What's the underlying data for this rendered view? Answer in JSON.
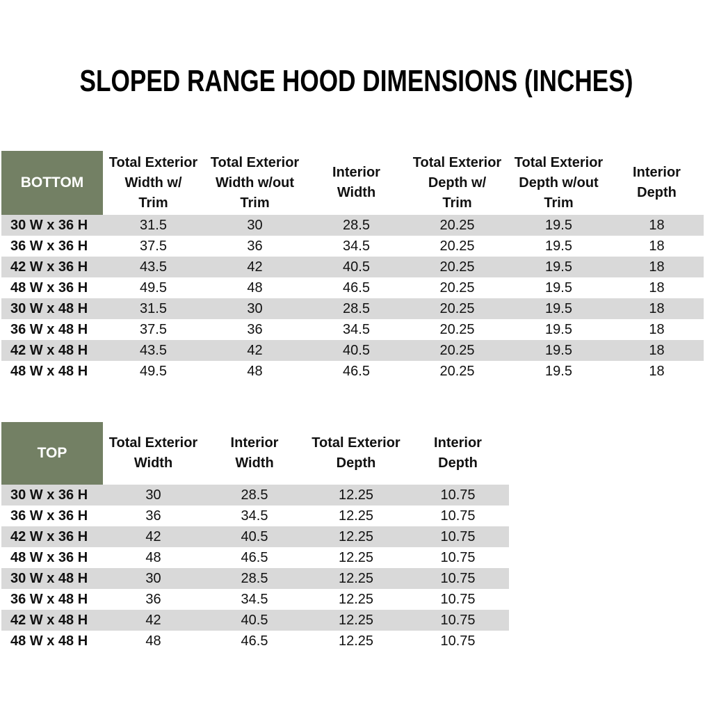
{
  "title": "SLOPED RANGE HOOD DIMENSIONS (INCHES)",
  "colors": {
    "header_green": "#738064",
    "row_stripe_gray": "#D9D9D9",
    "header_text": "#FFFFFF",
    "body_text": "#000000"
  },
  "bottom_table": {
    "label": "BOTTOM",
    "columns": [
      {
        "label": "Total Exterior Width w/ Trim",
        "lines": [
          "Total Exterior",
          "Width w/",
          "Trim"
        ]
      },
      {
        "label": "Total Exterior Width w/out Trim",
        "lines": [
          "Total Exterior",
          "Width w/out",
          "Trim"
        ]
      },
      {
        "label": "Interior Width",
        "lines": [
          "Interior",
          "Width"
        ]
      },
      {
        "label": "Total Exterior Depth w/ Trim",
        "lines": [
          "Total Exterior",
          "Depth w/",
          "Trim"
        ]
      },
      {
        "label": "Total Exterior Depth w/out Trim",
        "lines": [
          "Total Exterior",
          "Depth w/out",
          "Trim"
        ]
      },
      {
        "label": "Interior Depth",
        "lines": [
          "Interior",
          "Depth"
        ]
      }
    ],
    "rows": [
      {
        "label": "30 W x 36 H",
        "values": [
          "31.5",
          "30",
          "28.5",
          "20.25",
          "19.5",
          "18"
        ]
      },
      {
        "label": "36 W x 36 H",
        "values": [
          "37.5",
          "36",
          "34.5",
          "20.25",
          "19.5",
          "18"
        ]
      },
      {
        "label": "42 W x 36 H",
        "values": [
          "43.5",
          "42",
          "40.5",
          "20.25",
          "19.5",
          "18"
        ]
      },
      {
        "label": "48 W x 36 H",
        "values": [
          "49.5",
          "48",
          "46.5",
          "20.25",
          "19.5",
          "18"
        ]
      },
      {
        "label": "30 W x 48 H",
        "values": [
          "31.5",
          "30",
          "28.5",
          "20.25",
          "19.5",
          "18"
        ]
      },
      {
        "label": "36 W x 48 H",
        "values": [
          "37.5",
          "36",
          "34.5",
          "20.25",
          "19.5",
          "18"
        ]
      },
      {
        "label": "42 W x 48 H",
        "values": [
          "43.5",
          "42",
          "40.5",
          "20.25",
          "19.5",
          "18"
        ]
      },
      {
        "label": "48 W x 48 H",
        "values": [
          "49.5",
          "48",
          "46.5",
          "20.25",
          "19.5",
          "18"
        ]
      }
    ]
  },
  "top_table": {
    "label": "TOP",
    "columns": [
      {
        "label": "Total Exterior Width",
        "lines": [
          "Total Exterior",
          "Width"
        ]
      },
      {
        "label": "Interior Width",
        "lines": [
          "Interior",
          "Width"
        ]
      },
      {
        "label": "Total Exterior Depth",
        "lines": [
          "Total Exterior",
          "Depth"
        ]
      },
      {
        "label": "Interior Depth",
        "lines": [
          "Interior",
          "Depth"
        ]
      }
    ],
    "rows": [
      {
        "label": "30 W x 36 H",
        "values": [
          "30",
          "28.5",
          "12.25",
          "10.75"
        ]
      },
      {
        "label": "36 W x 36 H",
        "values": [
          "36",
          "34.5",
          "12.25",
          "10.75"
        ]
      },
      {
        "label": "42 W x 36 H",
        "values": [
          "42",
          "40.5",
          "12.25",
          "10.75"
        ]
      },
      {
        "label": "48 W x 36 H",
        "values": [
          "48",
          "46.5",
          "12.25",
          "10.75"
        ]
      },
      {
        "label": "30 W x 48 H",
        "values": [
          "30",
          "28.5",
          "12.25",
          "10.75"
        ]
      },
      {
        "label": "36 W x 48 H",
        "values": [
          "36",
          "34.5",
          "12.25",
          "10.75"
        ]
      },
      {
        "label": "42 W x 48 H",
        "values": [
          "42",
          "40.5",
          "12.25",
          "10.75"
        ]
      },
      {
        "label": "48 W x 48 H",
        "values": [
          "48",
          "46.5",
          "12.25",
          "10.75"
        ]
      }
    ]
  }
}
